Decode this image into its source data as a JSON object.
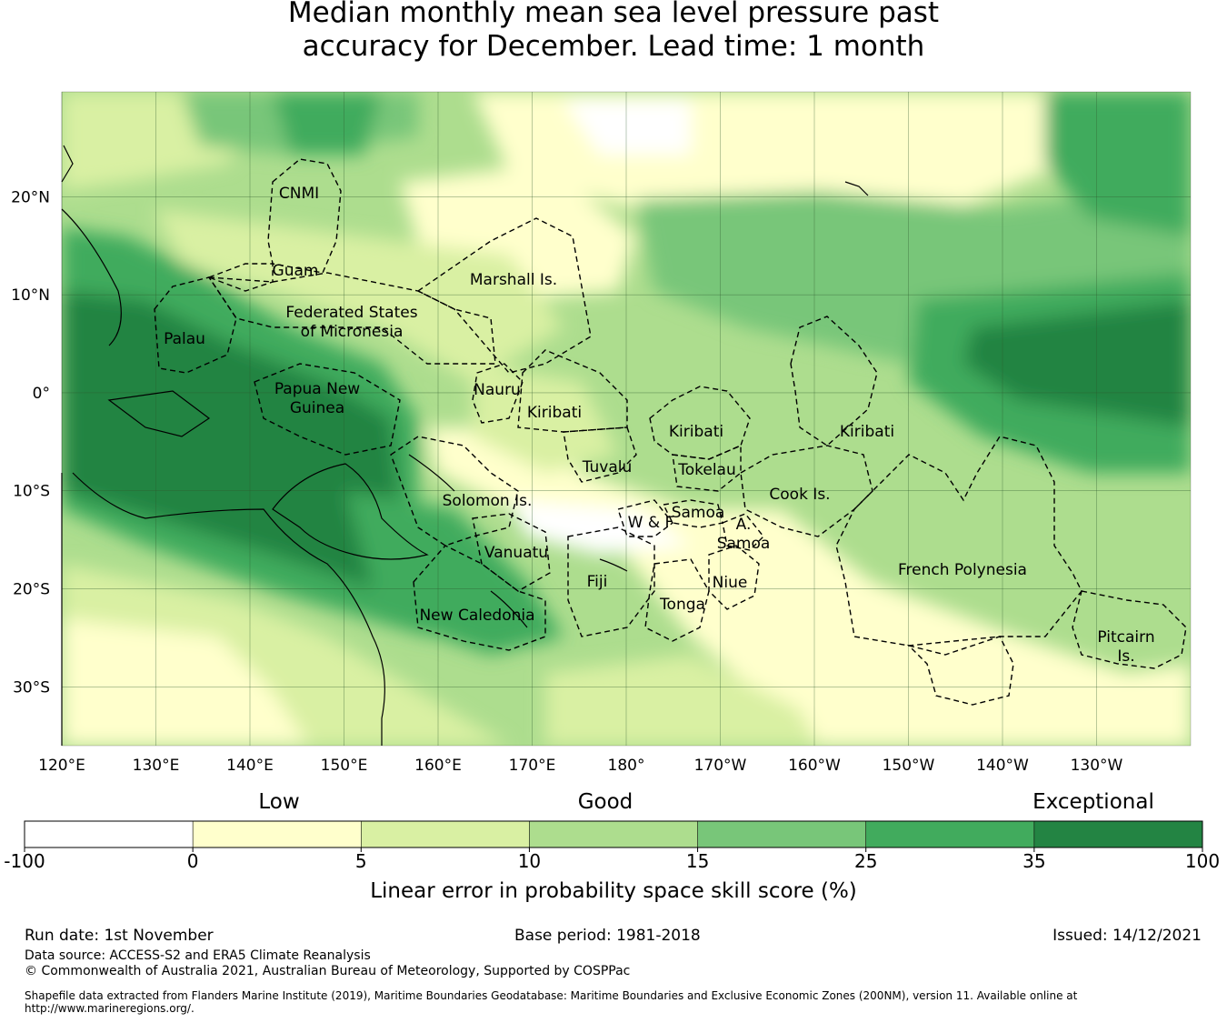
{
  "title": {
    "line1": "Median monthly mean sea level pressure past",
    "line2": "accuracy for December. Lead time: 1 month"
  },
  "map": {
    "lat_ticks": [
      "20°N",
      "10°N",
      "0°",
      "10°S",
      "20°S",
      "30°S"
    ],
    "lon_ticks": [
      "120°E",
      "130°E",
      "140°E",
      "150°E",
      "160°E",
      "170°E",
      "180°",
      "170°W",
      "160°W",
      "150°W",
      "140°W",
      "130°W"
    ],
    "regions": [
      {
        "name": "CNMI",
        "lines": [
          "CNMI"
        ]
      },
      {
        "name": "Guam",
        "lines": [
          "Guam"
        ]
      },
      {
        "name": "Marshall Is.",
        "lines": [
          "Marshall Is."
        ]
      },
      {
        "name": "Federated States of Micronesia",
        "lines": [
          "Federated States",
          "of Micronesia"
        ]
      },
      {
        "name": "Palau",
        "lines": [
          "Palau"
        ]
      },
      {
        "name": "Papua New Guinea",
        "lines": [
          "Papua New",
          "Guinea"
        ]
      },
      {
        "name": "Nauru",
        "lines": [
          "Nauru"
        ]
      },
      {
        "name": "Kiribati (Gilbert)",
        "lines": [
          "Kiribati"
        ]
      },
      {
        "name": "Kiribati (Phoenix)",
        "lines": [
          "Kiribati"
        ]
      },
      {
        "name": "Kiribati (Line)",
        "lines": [
          "Kiribati"
        ]
      },
      {
        "name": "Tuvalu",
        "lines": [
          "Tuvalu"
        ]
      },
      {
        "name": "Tokelau",
        "lines": [
          "Tokelau"
        ]
      },
      {
        "name": "Solomon Is.",
        "lines": [
          "Solomon Is."
        ]
      },
      {
        "name": "Cook Is.",
        "lines": [
          "Cook Is."
        ]
      },
      {
        "name": "Samoa",
        "lines": [
          "Samoa"
        ]
      },
      {
        "name": "W & F",
        "lines": [
          "W & F"
        ]
      },
      {
        "name": "A. Samoa",
        "lines": [
          "A.",
          "Samoa"
        ]
      },
      {
        "name": "Vanuatu",
        "lines": [
          "Vanuatu"
        ]
      },
      {
        "name": "Fiji",
        "lines": [
          "Fiji"
        ]
      },
      {
        "name": "Niue",
        "lines": [
          "Niue"
        ]
      },
      {
        "name": "Tonga",
        "lines": [
          "Tonga"
        ]
      },
      {
        "name": "French Polynesia",
        "lines": [
          "French Polynesia"
        ]
      },
      {
        "name": "New Caledonia",
        "lines": [
          "New Caledonia"
        ]
      },
      {
        "name": "Pitcairn Is.",
        "lines": [
          "Pitcairn",
          "Is."
        ]
      }
    ]
  },
  "colorbar": {
    "categories": [
      "Low",
      "Good",
      "Exceptional"
    ],
    "ticks": [
      "-100",
      "0",
      "5",
      "10",
      "15",
      "25",
      "35",
      "100"
    ],
    "colors": [
      "#ffffff",
      "#ffffcc",
      "#d9f0a3",
      "#addd8e",
      "#78c679",
      "#41ab5d",
      "#238443"
    ],
    "label": "Linear error in probability space skill score (%)"
  },
  "footer": {
    "run_date": "Run date: 1st November",
    "base_period": "Base period: 1981-2018",
    "issued": "Issued: 14/12/2021",
    "data_source": "Data source: ACCESS-S2 and ERA5 Climate Reanalysis",
    "copyright": "© Commonwealth of Australia 2021, Australian Bureau of Meteorology, Supported by COSPPac",
    "shapefile_line1": "Shapefile data extracted from Flanders Marine Institute (2019), Maritime Boundaries Geodatabase: Maritime Boundaries and Exclusive Economic Zones (200NM), version 11. Available online at",
    "shapefile_line2": "http://www.marineregions.org/."
  }
}
